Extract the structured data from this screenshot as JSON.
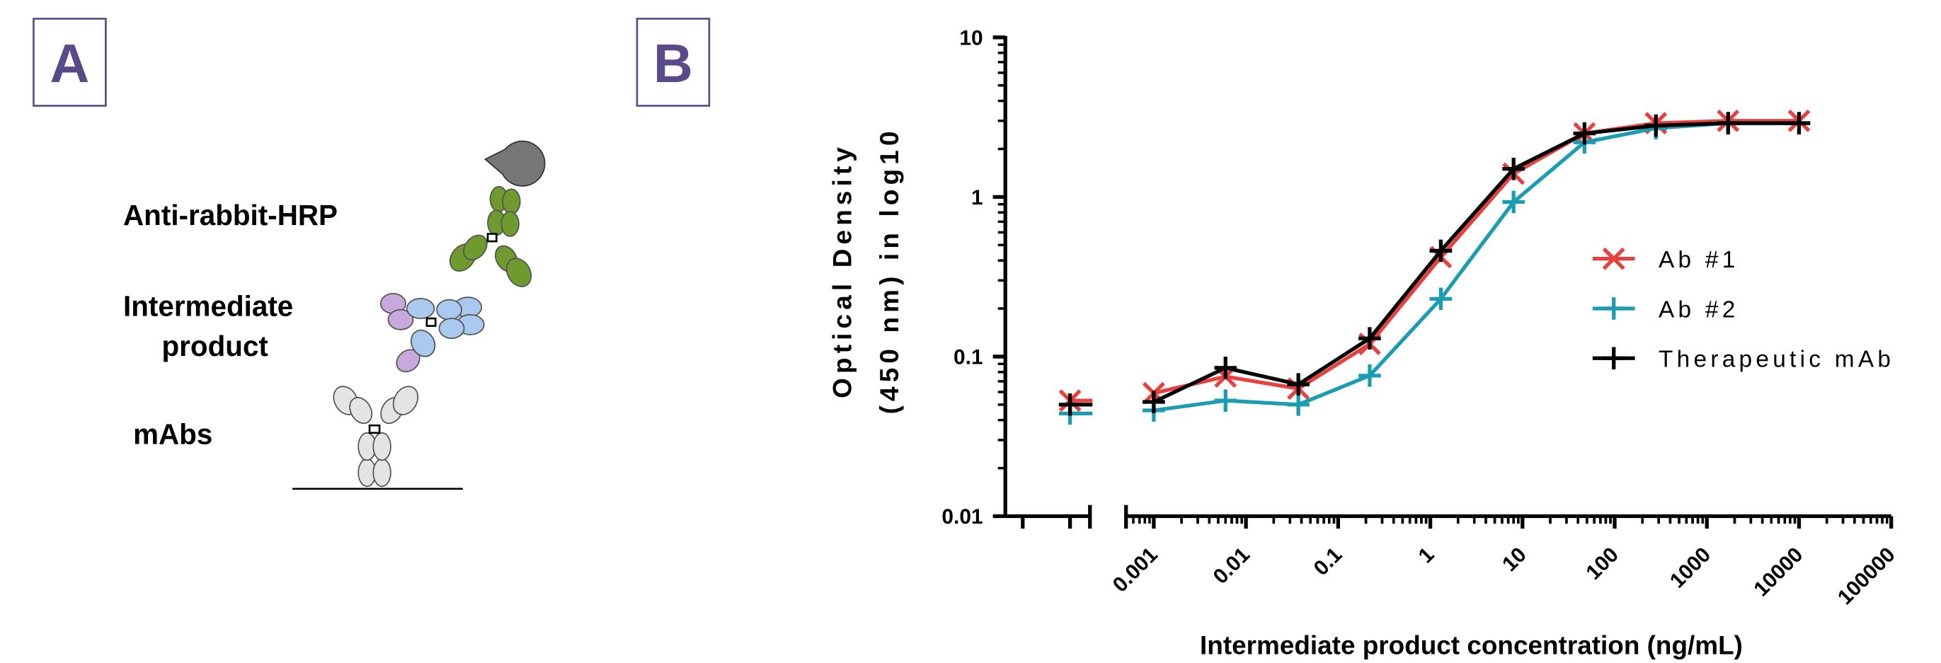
{
  "panel_a": {
    "letter": "A",
    "detector_label": "Anti-rabbit-HRP",
    "intermediate_label": [
      "Intermediate",
      "product"
    ],
    "mab_label": "mAbs"
  },
  "panel_b": {
    "letter": "B"
  },
  "chart_data": {
    "type": "line",
    "xlabel": "Intermediate product concentration (ng/mL)",
    "ylabel": [
      "Optical Density",
      "(450 nm) in log10"
    ],
    "log_x": true,
    "log_y": true,
    "x": [
      0.001,
      0.006,
      0.037,
      0.22,
      1.3,
      8,
      47,
      280,
      1700,
      10000
    ],
    "xlim": [
      0.0005,
      100000
    ],
    "xticks": [
      0.001,
      0.01,
      0.1,
      1,
      10,
      100,
      1000,
      10000,
      100000
    ],
    "ylim": [
      0.01,
      10
    ],
    "yticks": [
      0.01,
      0.1,
      1,
      10
    ],
    "legend": "right",
    "series": [
      {
        "name": "Ab #1",
        "color": "#e8403f",
        "marker": "x",
        "blank": 0.053,
        "values": [
          0.059,
          0.075,
          0.063,
          0.12,
          0.42,
          1.4,
          2.5,
          2.9,
          3.0,
          3.0
        ]
      },
      {
        "name": "Ab #2",
        "color": "#1a9db3",
        "marker": "+",
        "blank": 0.044,
        "values": [
          0.046,
          0.053,
          0.05,
          0.076,
          0.23,
          0.93,
          2.2,
          2.7,
          2.9,
          2.9
        ]
      },
      {
        "name": "Therapeutic mAb",
        "color": "#000000",
        "marker": "+",
        "blank": 0.05,
        "values": [
          0.052,
          0.085,
          0.067,
          0.13,
          0.46,
          1.5,
          2.5,
          2.8,
          2.9,
          2.9
        ]
      }
    ]
  }
}
